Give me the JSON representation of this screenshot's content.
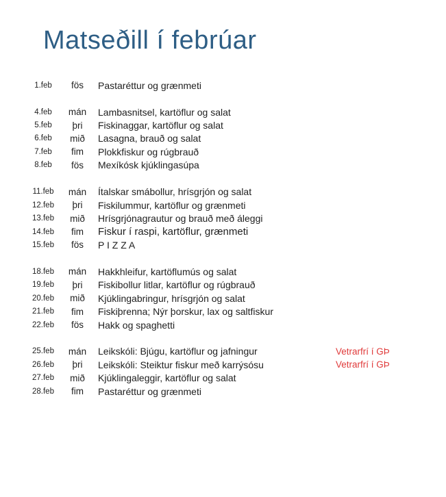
{
  "title": {
    "text": "Matseðill í febrúar"
  },
  "colors": {
    "title_blue": "#2e5e85",
    "body_text": "#1e1e1e",
    "note_red": "#e03b3b",
    "background": "#ffffff"
  },
  "menu": {
    "weeks": [
      {
        "rows": [
          {
            "date": "1.feb",
            "day": "fös",
            "meal": "Pastaréttur og grænmeti"
          }
        ]
      },
      {
        "rows": [
          {
            "date": "4.feb",
            "day": "mán",
            "meal": "Lambasnitsel, kartöflur og salat"
          },
          {
            "date": "5.feb",
            "day": "þri",
            "meal": "Fiskinaggar, kartöflur og salat"
          },
          {
            "date": "6.feb",
            "day": "mið",
            "meal": "Lasagna, brauð og salat"
          },
          {
            "date": "7.feb",
            "day": "fim",
            "meal": "Plokkfiskur og rúgbrauð"
          },
          {
            "date": "8.feb",
            "day": "fös",
            "meal": "Mexíkósk kjúklingasúpa"
          }
        ]
      },
      {
        "rows": [
          {
            "date": "11.feb",
            "day": "mán",
            "meal": "Ítalskar smábollur, hrísgrjón og salat"
          },
          {
            "date": "12.feb",
            "day": "þri",
            "meal": "Fiskilummur, kartöflur og grænmeti"
          },
          {
            "date": "13.feb",
            "day": "mið",
            "meal": "Hrísgrjónagrautur og brauð með áleggi"
          },
          {
            "date": "14.feb",
            "day": "fim",
            "meal": "Fiskur í raspi, kartöflur, grænmeti",
            "emphasis": true
          },
          {
            "date": "15.feb",
            "day": "fös",
            "meal": "P I Z Z A"
          }
        ]
      },
      {
        "rows": [
          {
            "date": "18.feb",
            "day": "mán",
            "meal": "Hakkhleifur, kartöflumús og salat"
          },
          {
            "date": "19.feb",
            "day": "þri",
            "meal": "Fiskibollur litlar, kartöflur og rúgbrauð"
          },
          {
            "date": "20.feb",
            "day": "mið",
            "meal": "Kjúklingabringur, hrísgrjón og salat"
          },
          {
            "date": "21.feb",
            "day": "fim",
            "meal": "Fiskiþrenna; Nýr þorskur, lax og saltfiskur"
          },
          {
            "date": "22.feb",
            "day": "fös",
            "meal": "Hakk og spaghetti"
          }
        ]
      },
      {
        "rows": [
          {
            "date": "25.feb",
            "day": "mán",
            "meal": "Leikskóli: Bjúgu, kartöflur og jafningur",
            "note": "Vetrarfrí í GÞ"
          },
          {
            "date": "26.feb",
            "day": "þri",
            "meal": "Leikskóli: Steiktur fiskur með karrýsósu",
            "note": "Vetrarfrí í GÞ"
          },
          {
            "date": "27.feb",
            "day": "mið",
            "meal": "Kjúklingaleggir, kartöflur og salat"
          },
          {
            "date": "28.feb",
            "day": "fim",
            "meal": "Pastaréttur og grænmeti"
          }
        ]
      }
    ]
  }
}
